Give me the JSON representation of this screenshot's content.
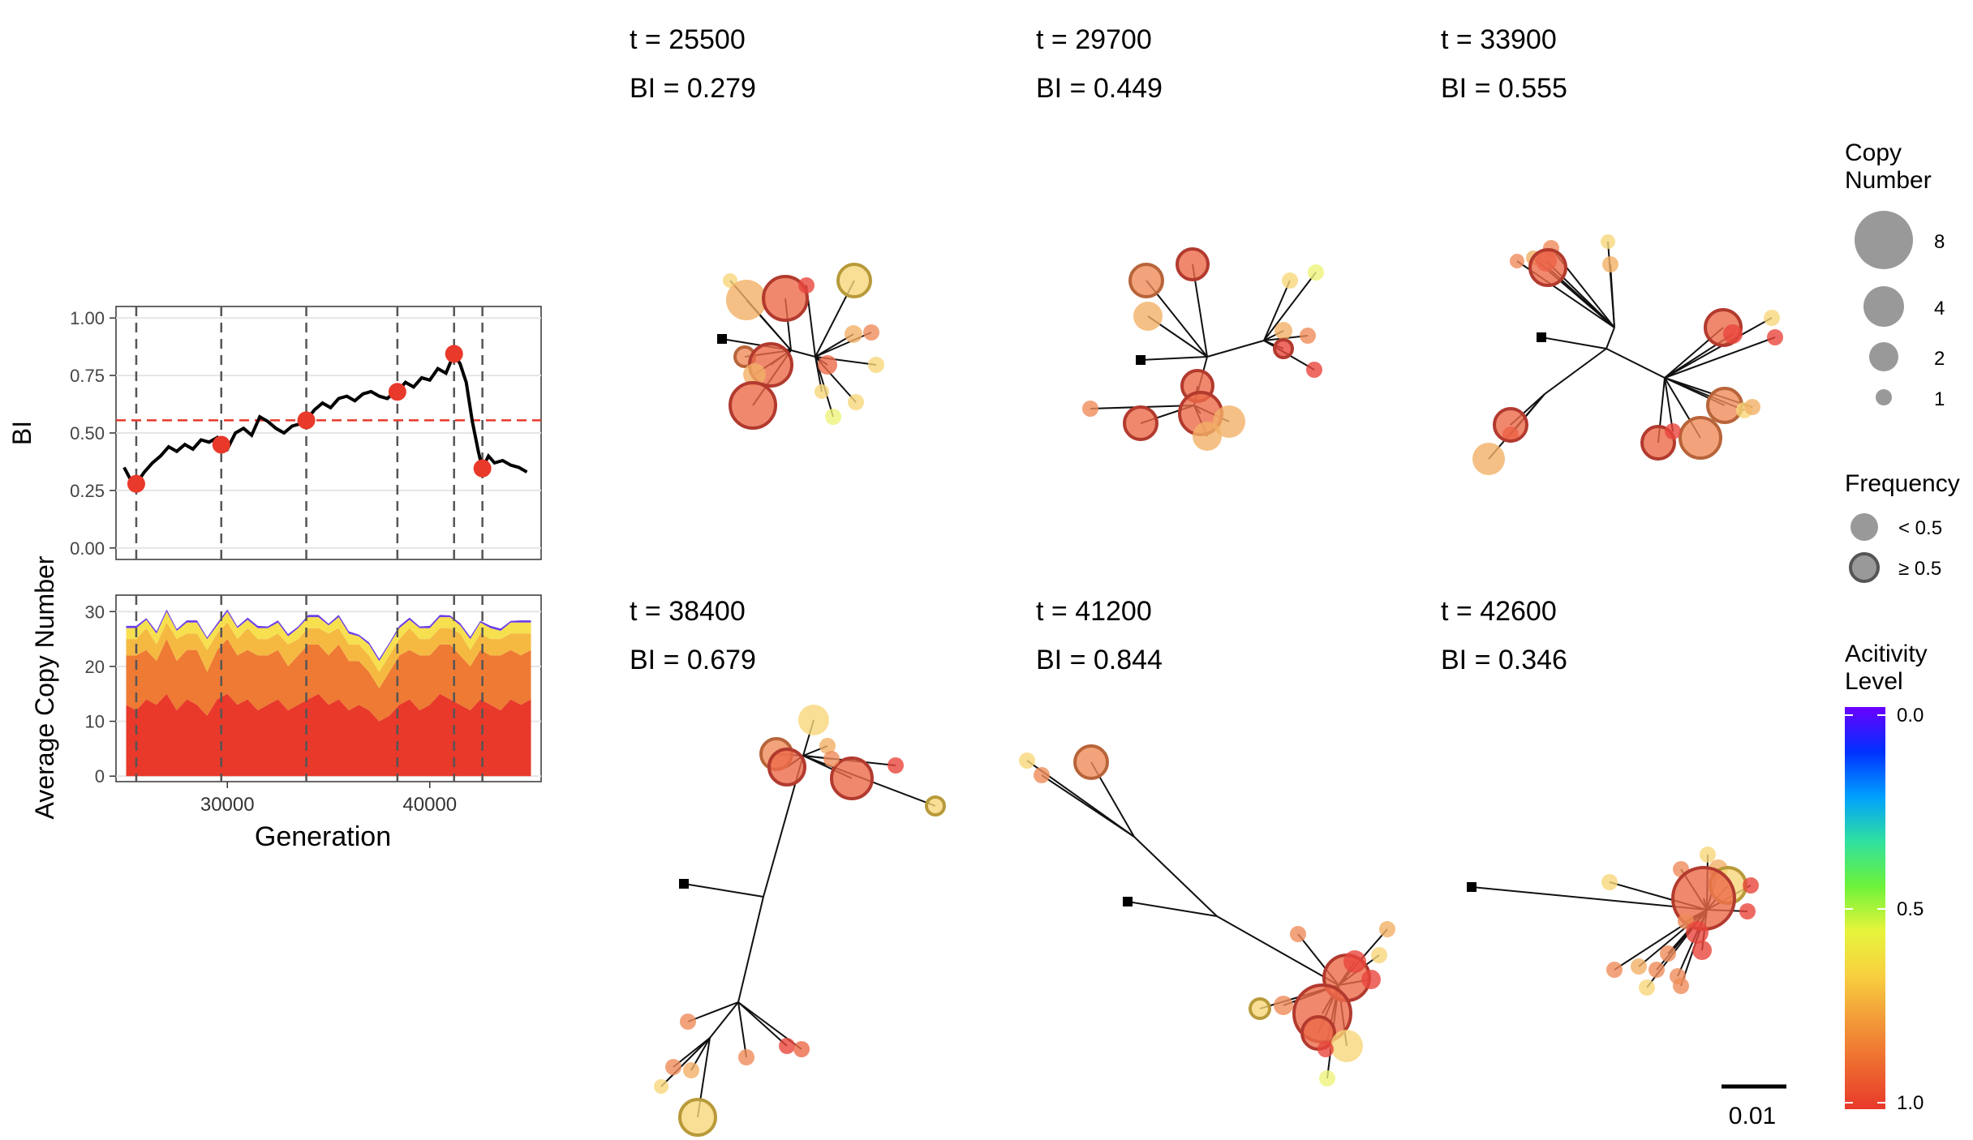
{
  "colors": {
    "bi_line": "#000000",
    "bi_point": "#e8392b",
    "threshold_line": "#e8392b",
    "vlines": "#555555",
    "panel_border": "#333333",
    "grid": "#e6e6e6",
    "branch": "#111111",
    "root": "#000000",
    "activity_scale": [
      "#6a00ff",
      "#0030ff",
      "#00a0ff",
      "#30e0a0",
      "#6cf23a",
      "#e6f53b",
      "#f8d040",
      "#f29a38",
      "#ee6a2f",
      "#e8392b"
    ]
  },
  "chart_data": [
    {
      "type": "line",
      "name": "bi-over-time",
      "xlabel": "",
      "ylabel": "BI",
      "xlim": [
        24500,
        45500
      ],
      "ylim": [
        -0.05,
        1.05
      ],
      "yticks": [
        0.0,
        0.25,
        0.5,
        0.75,
        1.0
      ],
      "ytick_labels": [
        "0.00",
        "0.25",
        "0.50",
        "0.75",
        "1.00"
      ],
      "grid": true,
      "threshold_y": 0.555,
      "vlines_x": [
        25500,
        29700,
        33900,
        38400,
        41200,
        42600
      ],
      "series": [
        {
          "x": [
            24900,
            25200,
            25500,
            25900,
            26300,
            26700,
            27100,
            27500,
            27900,
            28300,
            28700,
            29100,
            29500,
            29700,
            30000,
            30400,
            30800,
            31200,
            31600,
            32000,
            32400,
            32800,
            33200,
            33600,
            33900,
            34300,
            34700,
            35100,
            35500,
            35900,
            36300,
            36700,
            37100,
            37500,
            37900,
            38300,
            38400,
            38800,
            39200,
            39600,
            40000,
            40400,
            40800,
            41200,
            41500,
            41800,
            42100,
            42400,
            42600,
            42900,
            43200,
            43600,
            44000,
            44400,
            44800
          ],
          "y": [
            0.35,
            0.3,
            0.28,
            0.33,
            0.37,
            0.4,
            0.44,
            0.42,
            0.45,
            0.43,
            0.47,
            0.46,
            0.48,
            0.45,
            0.43,
            0.5,
            0.52,
            0.49,
            0.57,
            0.55,
            0.52,
            0.5,
            0.53,
            0.54,
            0.555,
            0.6,
            0.63,
            0.61,
            0.65,
            0.66,
            0.64,
            0.67,
            0.68,
            0.66,
            0.65,
            0.68,
            0.679,
            0.72,
            0.7,
            0.74,
            0.73,
            0.78,
            0.76,
            0.844,
            0.8,
            0.72,
            0.55,
            0.42,
            0.346,
            0.4,
            0.37,
            0.38,
            0.36,
            0.35,
            0.33
          ]
        }
      ],
      "points": {
        "x": [
          25500,
          29700,
          33900,
          38400,
          41200,
          42600
        ],
        "y": [
          0.279,
          0.449,
          0.555,
          0.679,
          0.844,
          0.346
        ]
      }
    },
    {
      "type": "area",
      "name": "average-copy-number",
      "xlabel": "Generation",
      "ylabel": "Average Copy Number",
      "xlim": [
        24500,
        45500
      ],
      "ylim": [
        -1,
        33
      ],
      "yticks": [
        0,
        10,
        20,
        30
      ],
      "ytick_labels": [
        "0",
        "10",
        "20",
        "30"
      ],
      "xticks": [
        30000,
        40000
      ],
      "xtick_labels": [
        "30000",
        "40000"
      ],
      "grid": true,
      "vlines_x": [
        25500,
        29700,
        33900,
        38400,
        41200,
        42600
      ],
      "x": [
        25000,
        25500,
        26000,
        26500,
        27000,
        27500,
        28000,
        28500,
        29000,
        29500,
        30000,
        30500,
        31000,
        31500,
        32000,
        32500,
        33000,
        33500,
        34000,
        34500,
        35000,
        35500,
        36000,
        36500,
        37000,
        37500,
        38000,
        38500,
        39000,
        39500,
        40000,
        40500,
        41000,
        41500,
        42000,
        42500,
        43000,
        43500,
        44000,
        44500,
        45000
      ],
      "series": [
        {
          "color": "#e8392b",
          "values": [
            13,
            12,
            14,
            13,
            15,
            12,
            14,
            13,
            11,
            14,
            15,
            13,
            14,
            12,
            13,
            14,
            12,
            13,
            14,
            15,
            13,
            14,
            12,
            13,
            12,
            10,
            11,
            13,
            14,
            12,
            13,
            15,
            14,
            13,
            12,
            14,
            13,
            12,
            14,
            13,
            14
          ]
        },
        {
          "color": "#ee7a33",
          "values": [
            9,
            10,
            9,
            8,
            10,
            9,
            9,
            10,
            8,
            9,
            10,
            9,
            9,
            10,
            9,
            9,
            8,
            9,
            10,
            9,
            9,
            10,
            9,
            8,
            7,
            6,
            8,
            9,
            9,
            10,
            9,
            9,
            10,
            9,
            8,
            9,
            9,
            10,
            9,
            9,
            9
          ]
        },
        {
          "color": "#f5b942",
          "values": [
            3,
            3,
            4,
            3,
            3,
            4,
            3,
            3,
            4,
            3,
            3,
            3,
            4,
            3,
            3,
            3,
            4,
            3,
            3,
            3,
            4,
            3,
            3,
            3,
            3,
            3,
            3,
            3,
            4,
            3,
            3,
            3,
            3,
            4,
            3,
            3,
            3,
            3,
            3,
            4,
            3
          ]
        },
        {
          "color": "#f6e050",
          "values": [
            2,
            2,
            1.5,
            2,
            2,
            1.5,
            2,
            2,
            2,
            1.5,
            2,
            2,
            1.5,
            2,
            2,
            2,
            1.5,
            2,
            2,
            2,
            1.5,
            2,
            2,
            1.5,
            2,
            2,
            2,
            2,
            1.5,
            2,
            2,
            2,
            2,
            1.5,
            2,
            2,
            2,
            1.5,
            2,
            2,
            2
          ]
        },
        {
          "color": "#6a3de8",
          "values": [
            0.4,
            0.4,
            0.3,
            0.4,
            0.4,
            0.3,
            0.4,
            0.4,
            0.3,
            0.4,
            0.4,
            0.3,
            0.4,
            0.4,
            0.3,
            0.4,
            0.4,
            0.3,
            0.4,
            0.4,
            0.3,
            0.4,
            0.4,
            0.3,
            0.4,
            0.4,
            0.3,
            0.4,
            0.4,
            0.3,
            0.4,
            0.4,
            0.3,
            0.4,
            0.4,
            0.3,
            0.4,
            0.4,
            0.3,
            0.4,
            0.4
          ]
        }
      ]
    }
  ],
  "trees": [
    {
      "t": "t = 25500",
      "bi": "BI = 0.279"
    },
    {
      "t": "t = 29700",
      "bi": "BI = 0.449"
    },
    {
      "t": "t = 33900",
      "bi": "BI = 0.555"
    },
    {
      "t": "t = 38400",
      "bi": "BI = 0.679"
    },
    {
      "t": "t = 41200",
      "bi": "BI = 0.844"
    },
    {
      "t": "t = 42600",
      "bi": "BI = 0.346"
    }
  ],
  "scale_bar": {
    "label": "0.01"
  },
  "legend": {
    "copy_number": {
      "title_line1": "Copy",
      "title_line2": "Number",
      "labels": [
        "8",
        "4",
        "2",
        "1"
      ]
    },
    "frequency": {
      "title": "Frequency",
      "labels": [
        "< 0.5",
        "≥ 0.5"
      ]
    },
    "activity": {
      "title_line1": "Acitivity",
      "title_line2": "Level",
      "labels": [
        "0.0",
        "0.5",
        "1.0"
      ]
    }
  }
}
